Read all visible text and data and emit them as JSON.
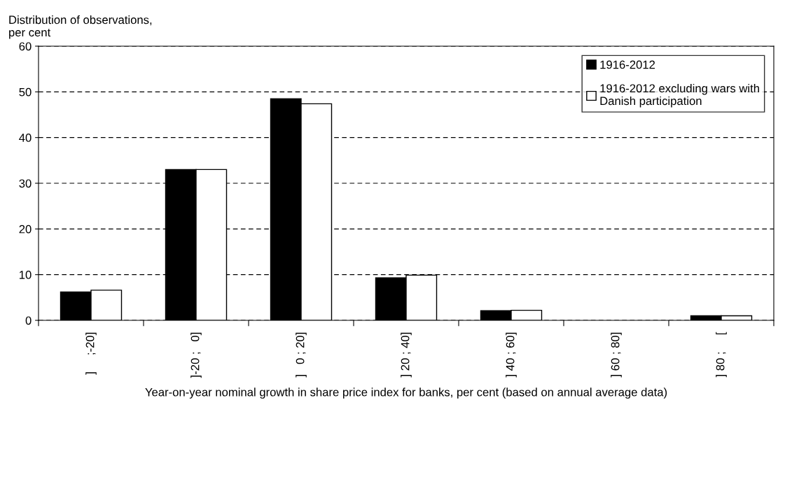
{
  "chart_data": {
    "type": "bar",
    "ylabel": "Distribution of observations,\nper cent",
    "xlabel": "Year-on-year nominal growth in share price index for banks, per cent (based on annual average data)",
    "categories": [
      "]     ;-20]",
      "]-20 ;   0]",
      "]   0 ; 20]",
      "] 20 ; 40]",
      "] 40 ; 60]",
      "] 60 ; 80]",
      "] 80 ;     ["
    ],
    "series": [
      {
        "name": "1916-2012",
        "color": "#000000",
        "values": [
          6.2,
          33.0,
          48.5,
          9.3,
          2.1,
          null,
          1.0
        ]
      },
      {
        "name": "1916-2012 excluding wars with\nDanish participation",
        "color": "#ffffff",
        "values": [
          6.6,
          33.0,
          47.4,
          9.9,
          2.2,
          null,
          1.0
        ]
      }
    ],
    "ylim": [
      0,
      60
    ],
    "yticks": [
      0,
      10,
      20,
      30,
      40,
      50,
      60
    ],
    "grid": "y",
    "legend": "top right"
  }
}
